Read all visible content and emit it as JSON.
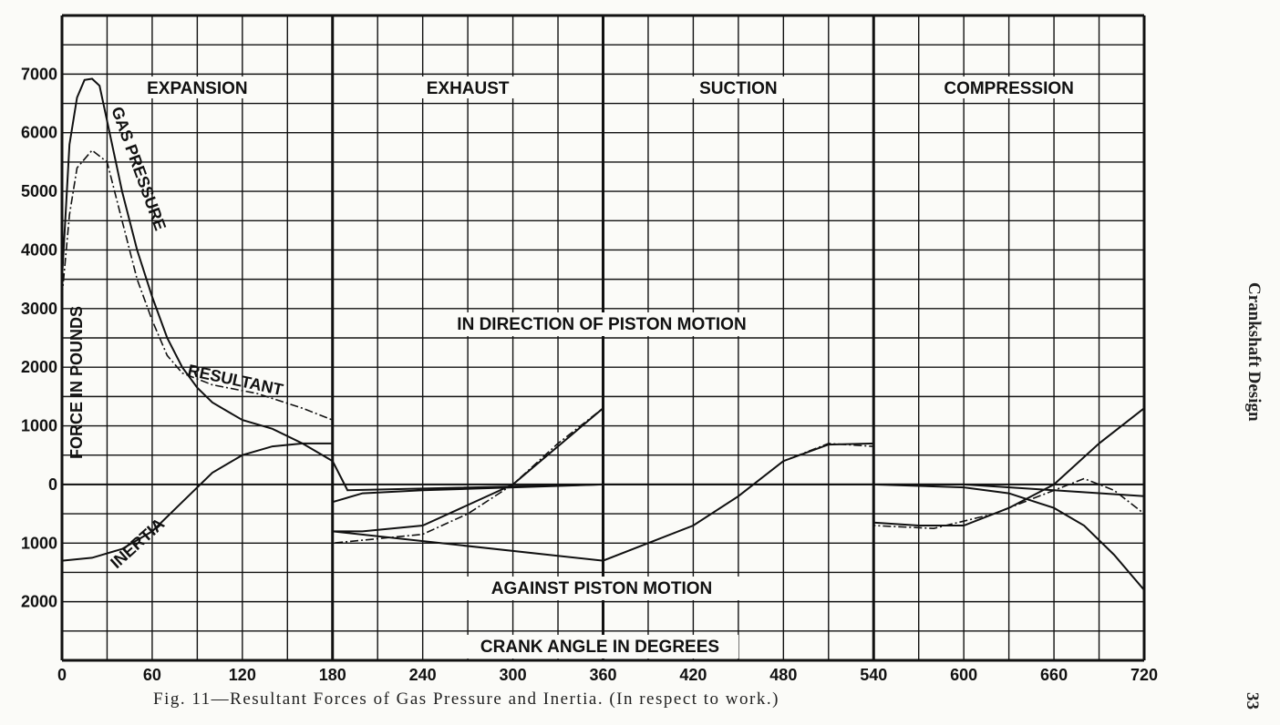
{
  "chart_data": {
    "type": "line",
    "xlabel": "CRANK ANGLE IN DEGREES",
    "ylabel": "FORCE IN POUNDS",
    "xlim": [
      0,
      720
    ],
    "ylim": [
      -3000,
      8000
    ],
    "xticks": [
      "0",
      "60",
      "120",
      "180",
      "240",
      "300",
      "360",
      "420",
      "480",
      "540",
      "600",
      "660",
      "720"
    ],
    "yticks": [
      {
        "label": "7000",
        "value": 7000
      },
      {
        "label": "6000",
        "value": 6000
      },
      {
        "label": "5000",
        "value": 5000
      },
      {
        "label": "4000",
        "value": 4000
      },
      {
        "label": "3000",
        "value": 3000
      },
      {
        "label": "2000",
        "value": 2000
      },
      {
        "label": "1000",
        "value": 1000
      },
      {
        "label": "0",
        "value": 0
      },
      {
        "label": "1000",
        "value": -1000
      },
      {
        "label": "2000",
        "value": -2000
      }
    ],
    "phases": [
      "EXPANSION",
      "EXHAUST",
      "SUCTION",
      "COMPRESSION"
    ],
    "annotations": {
      "positive": "IN DIRECTION OF PISTON MOTION",
      "negative": "AGAINST  PISTON MOTION"
    },
    "grid": true,
    "series": [
      {
        "name": "GAS PRESSURE",
        "style": "solid",
        "points": [
          [
            0,
            3500
          ],
          [
            5,
            5800
          ],
          [
            10,
            6600
          ],
          [
            15,
            6900
          ],
          [
            20,
            6920
          ],
          [
            25,
            6800
          ],
          [
            30,
            6200
          ],
          [
            40,
            5000
          ],
          [
            50,
            4000
          ],
          [
            60,
            3200
          ],
          [
            70,
            2500
          ],
          [
            80,
            2000
          ],
          [
            90,
            1650
          ],
          [
            100,
            1400
          ],
          [
            110,
            1250
          ],
          [
            120,
            1100
          ],
          [
            140,
            950
          ],
          [
            160,
            700
          ],
          [
            180,
            400
          ],
          [
            190,
            -100
          ],
          [
            360,
            0
          ],
          [
            540,
            0
          ],
          [
            600,
            0
          ],
          [
            660,
            -100
          ],
          [
            720,
            -200
          ]
        ]
      },
      {
        "name": "INERTIA",
        "style": "solid",
        "points": [
          [
            0,
            -1300
          ],
          [
            20,
            -1250
          ],
          [
            40,
            -1100
          ],
          [
            60,
            -800
          ],
          [
            80,
            -300
          ],
          [
            100,
            200
          ],
          [
            120,
            500
          ],
          [
            140,
            650
          ],
          [
            160,
            700
          ],
          [
            180,
            700
          ],
          [
            180,
            -300
          ],
          [
            200,
            -150
          ],
          [
            240,
            -100
          ],
          [
            300,
            -50
          ],
          [
            360,
            0
          ],
          [
            360,
            1300
          ],
          [
            300,
            0
          ],
          [
            240,
            -700
          ],
          [
            200,
            -800
          ],
          [
            180,
            -800
          ],
          [
            360,
            -1300
          ],
          [
            420,
            -700
          ],
          [
            450,
            -200
          ],
          [
            480,
            400
          ],
          [
            510,
            680
          ],
          [
            540,
            700
          ],
          [
            540,
            0
          ],
          [
            600,
            -50
          ],
          [
            630,
            -150
          ],
          [
            660,
            -400
          ],
          [
            680,
            -700
          ],
          [
            700,
            -1200
          ],
          [
            720,
            -1800
          ]
        ]
      },
      {
        "name": "RESULTANT",
        "style": "dashdot",
        "points": [
          [
            0,
            3200
          ],
          [
            5,
            4600
          ],
          [
            10,
            5400
          ],
          [
            20,
            5700
          ],
          [
            30,
            5500
          ],
          [
            40,
            4500
          ],
          [
            50,
            3500
          ],
          [
            60,
            2800
          ],
          [
            70,
            2200
          ],
          [
            80,
            1900
          ],
          [
            100,
            1700
          ],
          [
            130,
            1550
          ],
          [
            160,
            1300
          ],
          [
            180,
            1100
          ],
          [
            180,
            -1000
          ],
          [
            200,
            -950
          ],
          [
            240,
            -850
          ],
          [
            270,
            -500
          ],
          [
            300,
            0
          ],
          [
            330,
            700
          ],
          [
            360,
            1300
          ],
          [
            360,
            -1300
          ],
          [
            420,
            -700
          ],
          [
            450,
            -200
          ],
          [
            480,
            400
          ],
          [
            510,
            700
          ],
          [
            540,
            650
          ],
          [
            540,
            -700
          ],
          [
            580,
            -750
          ],
          [
            620,
            -500
          ],
          [
            650,
            -200
          ],
          [
            680,
            100
          ],
          [
            700,
            -100
          ],
          [
            720,
            -500
          ]
        ]
      },
      {
        "name": "",
        "style": "solid",
        "points": [
          [
            540,
            -650
          ],
          [
            570,
            -700
          ],
          [
            600,
            -700
          ],
          [
            630,
            -400
          ],
          [
            660,
            0
          ],
          [
            690,
            700
          ],
          [
            720,
            1300
          ]
        ]
      }
    ],
    "curve_labels": [
      "GAS PRESSURE",
      "RESULTANT",
      "INERTIA"
    ]
  },
  "caption": "Fig. 11—Resultant Forces of Gas Pressure and Inertia.  (In respect to work.)",
  "side_title": "Crankshaft Design",
  "page_number": "33"
}
